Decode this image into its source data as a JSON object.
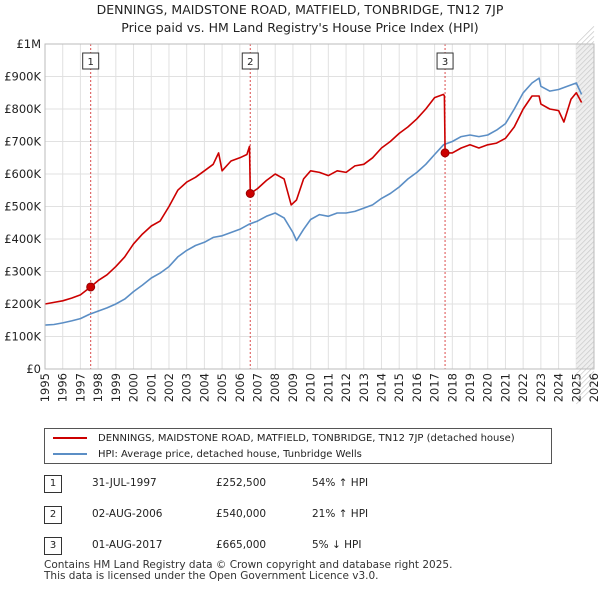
{
  "title": {
    "line1": "DENNINGS, MAIDSTONE ROAD, MATFIELD, TONBRIDGE, TN12 7JP",
    "line2": "Price paid vs. HM Land Registry's House Price Index (HPI)"
  },
  "chart_data": {
    "type": "line",
    "ylim": [
      0,
      1000000
    ],
    "xlim": [
      1995,
      2026
    ],
    "y_ticks": [
      {
        "value": 0,
        "label": "£0"
      },
      {
        "value": 100000,
        "label": "£100K"
      },
      {
        "value": 200000,
        "label": "£200K"
      },
      {
        "value": 300000,
        "label": "£300K"
      },
      {
        "value": 400000,
        "label": "£400K"
      },
      {
        "value": 500000,
        "label": "£500K"
      },
      {
        "value": 600000,
        "label": "£600K"
      },
      {
        "value": 700000,
        "label": "£700K"
      },
      {
        "value": 800000,
        "label": "£800K"
      },
      {
        "value": 900000,
        "label": "£900K"
      },
      {
        "value": 1000000,
        "label": "£1M"
      }
    ],
    "x_ticks": [
      "1995",
      "1996",
      "1997",
      "1998",
      "1999",
      "2000",
      "2001",
      "2002",
      "2003",
      "2004",
      "2005",
      "2006",
      "2007",
      "2008",
      "2009",
      "2010",
      "2011",
      "2012",
      "2013",
      "2014",
      "2015",
      "2016",
      "2017",
      "2018",
      "2019",
      "2020",
      "2021",
      "2022",
      "2023",
      "2024",
      "2025",
      "2026"
    ],
    "grid": true,
    "shaded_region": {
      "from": 2025.0,
      "to": 2026.0
    },
    "series": [
      {
        "name": "DENNINGS, MAIDSTONE ROAD, MATFIELD, TONBRIDGE, TN12 7JP (detached house)",
        "color": "#cc0000",
        "x": [
          1995.0,
          1995.5,
          1996.0,
          1996.5,
          1997.0,
          1997.58,
          1998.0,
          1998.5,
          1999.0,
          1999.5,
          2000.0,
          2000.5,
          2001.0,
          2001.5,
          2002.0,
          2002.5,
          2003.0,
          2003.5,
          2004.0,
          2004.5,
          2004.8,
          2005.0,
          2005.5,
          2006.0,
          2006.4,
          2006.55,
          2006.59,
          2007.0,
          2007.5,
          2008.0,
          2008.5,
          2008.9,
          2009.2,
          2009.6,
          2010.0,
          2010.5,
          2011.0,
          2011.5,
          2012.0,
          2012.5,
          2013.0,
          2013.5,
          2014.0,
          2014.5,
          2015.0,
          2015.5,
          2016.0,
          2016.5,
          2017.0,
          2017.5,
          2017.55,
          2017.59,
          2018.0,
          2018.5,
          2019.0,
          2019.5,
          2020.0,
          2020.5,
          2021.0,
          2021.5,
          2022.0,
          2022.5,
          2022.9,
          2023.0,
          2023.5,
          2024.0,
          2024.3,
          2024.7,
          2025.0,
          2025.3
        ],
        "values": [
          200000,
          205000,
          210000,
          218000,
          228000,
          252500,
          272000,
          290000,
          315000,
          345000,
          385000,
          415000,
          440000,
          455000,
          500000,
          550000,
          575000,
          590000,
          610000,
          630000,
          665000,
          610000,
          640000,
          650000,
          660000,
          685000,
          540000,
          555000,
          580000,
          600000,
          585000,
          505000,
          520000,
          585000,
          610000,
          605000,
          595000,
          610000,
          605000,
          625000,
          630000,
          650000,
          680000,
          700000,
          725000,
          745000,
          770000,
          800000,
          835000,
          845000,
          840000,
          665000,
          665000,
          680000,
          690000,
          680000,
          690000,
          695000,
          710000,
          745000,
          800000,
          840000,
          840000,
          815000,
          800000,
          795000,
          760000,
          830000,
          850000,
          820000
        ]
      },
      {
        "name": "HPI: Average price, detached house, Tunbridge Wells",
        "color": "#5b8ec5",
        "x": [
          1995.0,
          1995.5,
          1996.0,
          1996.5,
          1997.0,
          1997.5,
          1998.0,
          1998.5,
          1999.0,
          1999.5,
          2000.0,
          2000.5,
          2001.0,
          2001.5,
          2002.0,
          2002.5,
          2003.0,
          2003.5,
          2004.0,
          2004.5,
          2005.0,
          2005.5,
          2006.0,
          2006.5,
          2007.0,
          2007.5,
          2008.0,
          2008.5,
          2009.0,
          2009.2,
          2009.6,
          2010.0,
          2010.5,
          2011.0,
          2011.5,
          2012.0,
          2012.5,
          2013.0,
          2013.5,
          2014.0,
          2014.5,
          2015.0,
          2015.5,
          2016.0,
          2016.5,
          2017.0,
          2017.5,
          2018.0,
          2018.5,
          2019.0,
          2019.5,
          2020.0,
          2020.5,
          2021.0,
          2021.5,
          2022.0,
          2022.5,
          2022.9,
          2023.0,
          2023.5,
          2024.0,
          2024.5,
          2025.0,
          2025.3
        ],
        "values": [
          135000,
          137000,
          142000,
          148000,
          155000,
          168000,
          178000,
          188000,
          200000,
          215000,
          238000,
          258000,
          280000,
          295000,
          315000,
          345000,
          365000,
          380000,
          390000,
          405000,
          410000,
          420000,
          430000,
          445000,
          455000,
          470000,
          480000,
          465000,
          420000,
          395000,
          430000,
          460000,
          475000,
          470000,
          480000,
          480000,
          485000,
          495000,
          505000,
          525000,
          540000,
          560000,
          585000,
          605000,
          630000,
          660000,
          690000,
          700000,
          715000,
          720000,
          715000,
          720000,
          735000,
          755000,
          800000,
          850000,
          880000,
          895000,
          870000,
          855000,
          860000,
          870000,
          880000,
          845000
        ]
      }
    ],
    "annotations": [
      {
        "id": "1",
        "x": 1997.58,
        "y": 252500
      },
      {
        "id": "2",
        "x": 2006.59,
        "y": 540000
      },
      {
        "id": "3",
        "x": 2017.59,
        "y": 665000
      }
    ]
  },
  "legend": [
    {
      "label": "DENNINGS, MAIDSTONE ROAD, MATFIELD, TONBRIDGE, TN12 7JP (detached house)",
      "color": "#cc0000"
    },
    {
      "label": "HPI: Average price, detached house, Tunbridge Wells",
      "color": "#5b8ec5"
    }
  ],
  "sales": [
    {
      "num": "1",
      "date": "31-JUL-1997",
      "price": "£252,500",
      "hpi": "54% ↑ HPI"
    },
    {
      "num": "2",
      "date": "02-AUG-2006",
      "price": "£540,000",
      "hpi": "21% ↑ HPI"
    },
    {
      "num": "3",
      "date": "01-AUG-2017",
      "price": "£665,000",
      "hpi": "5% ↓ HPI"
    }
  ],
  "footer": {
    "line1": "Contains HM Land Registry data © Crown copyright and database right 2025.",
    "line2": "This data is licensed under the Open Government Licence v3.0."
  }
}
